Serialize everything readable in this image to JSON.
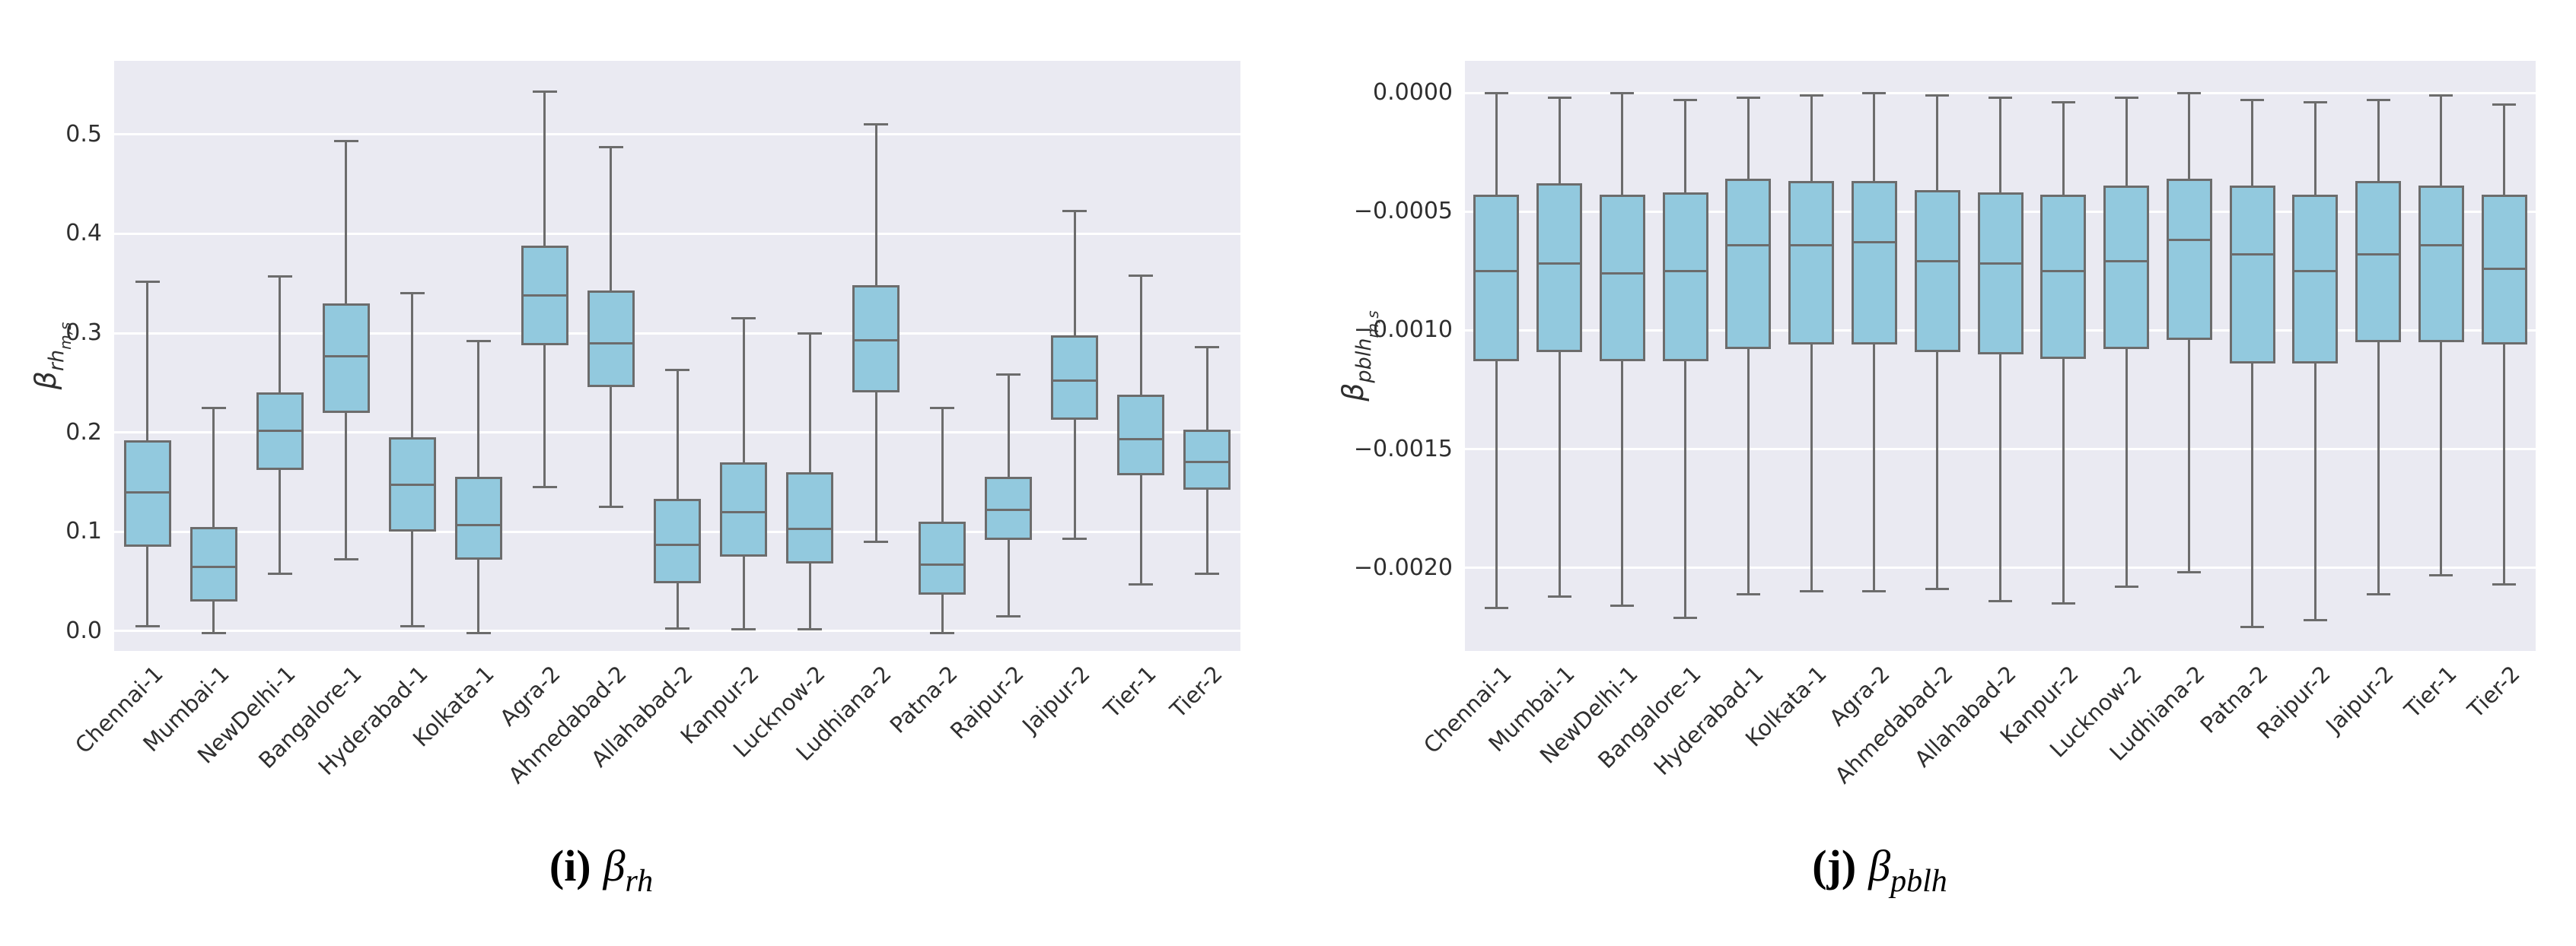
{
  "colors": {
    "page_bg": "#ffffff",
    "plot_bg": "#eaeaf2",
    "grid": "#ffffff",
    "box_fill": "#92c9de",
    "box_edge": "#6c6c6c",
    "tick_text": "#2f2f2f"
  },
  "chart_data": [
    {
      "type": "box",
      "title": "",
      "xlabel": "",
      "caption": {
        "index": "(i)",
        "symbol": "β",
        "subscript": "rh"
      },
      "ylabel": {
        "base": "β",
        "sub": "rh",
        "subsub": "m,s"
      },
      "ylim": [
        -0.0199,
        0.574
      ],
      "grid": true,
      "yticks": [
        {
          "value": 0.0,
          "label": "0.0"
        },
        {
          "value": 0.1,
          "label": "0.1"
        },
        {
          "value": 0.2,
          "label": "0.2"
        },
        {
          "value": 0.3,
          "label": "0.3"
        },
        {
          "value": 0.4,
          "label": "0.4"
        },
        {
          "value": 0.5,
          "label": "0.5"
        }
      ],
      "categories": [
        "Chennai-1",
        "Mumbai-1",
        "NewDelhi-1",
        "Bangalore-1",
        "Hyderabad-1",
        "Kolkata-1",
        "Agra-2",
        "Ahmedabad-2",
        "Allahabad-2",
        "Kanpur-2",
        "Lucknow-2",
        "Ludhiana-2",
        "Patna-2",
        "Raipur-2",
        "Jaipur-2",
        "Tier-1",
        "Tier-2"
      ],
      "boxes": [
        {
          "category": "Chennai-1",
          "whisker_low": 0.005,
          "q1": 0.085,
          "median": 0.14,
          "q3": 0.192,
          "whisker_high": 0.352
        },
        {
          "category": "Mumbai-1",
          "whisker_low": -0.002,
          "q1": 0.03,
          "median": 0.065,
          "q3": 0.105,
          "whisker_high": 0.225
        },
        {
          "category": "NewDelhi-1",
          "whisker_low": 0.058,
          "q1": 0.162,
          "median": 0.202,
          "q3": 0.24,
          "whisker_high": 0.357
        },
        {
          "category": "Bangalore-1",
          "whisker_low": 0.072,
          "q1": 0.22,
          "median": 0.277,
          "q3": 0.33,
          "whisker_high": 0.493
        },
        {
          "category": "Hyderabad-1",
          "whisker_low": 0.005,
          "q1": 0.1,
          "median": 0.147,
          "q3": 0.195,
          "whisker_high": 0.34
        },
        {
          "category": "Kolkata-1",
          "whisker_low": -0.002,
          "q1": 0.072,
          "median": 0.107,
          "q3": 0.155,
          "whisker_high": 0.292
        },
        {
          "category": "Agra-2",
          "whisker_low": 0.145,
          "q1": 0.288,
          "median": 0.338,
          "q3": 0.388,
          "whisker_high": 0.543
        },
        {
          "category": "Ahmedabad-2",
          "whisker_low": 0.125,
          "q1": 0.246,
          "median": 0.29,
          "q3": 0.343,
          "whisker_high": 0.487
        },
        {
          "category": "Allahabad-2",
          "whisker_low": 0.003,
          "q1": 0.048,
          "median": 0.087,
          "q3": 0.133,
          "whisker_high": 0.263
        },
        {
          "category": "Kanpur-2",
          "whisker_low": 0.002,
          "q1": 0.075,
          "median": 0.12,
          "q3": 0.17,
          "whisker_high": 0.315
        },
        {
          "category": "Lucknow-2",
          "whisker_low": 0.002,
          "q1": 0.068,
          "median": 0.103,
          "q3": 0.16,
          "whisker_high": 0.3
        },
        {
          "category": "Ludhiana-2",
          "whisker_low": 0.09,
          "q1": 0.24,
          "median": 0.293,
          "q3": 0.348,
          "whisker_high": 0.51
        },
        {
          "category": "Patna-2",
          "whisker_low": -0.002,
          "q1": 0.037,
          "median": 0.067,
          "q3": 0.11,
          "whisker_high": 0.225
        },
        {
          "category": "Raipur-2",
          "whisker_low": 0.015,
          "q1": 0.092,
          "median": 0.122,
          "q3": 0.155,
          "whisker_high": 0.258
        },
        {
          "category": "Jaipur-2",
          "whisker_low": 0.093,
          "q1": 0.213,
          "median": 0.252,
          "q3": 0.298,
          "whisker_high": 0.423
        },
        {
          "category": "Tier-1",
          "whisker_low": 0.047,
          "q1": 0.157,
          "median": 0.193,
          "q3": 0.238,
          "whisker_high": 0.358
        },
        {
          "category": "Tier-2",
          "whisker_low": 0.058,
          "q1": 0.142,
          "median": 0.17,
          "q3": 0.203,
          "whisker_high": 0.286
        }
      ]
    },
    {
      "type": "box",
      "title": "",
      "xlabel": "",
      "caption": {
        "index": "(j)",
        "symbol": "β",
        "subscript": "pblh"
      },
      "ylabel": {
        "base": "β",
        "sub": "pblh",
        "subsub": "m,s"
      },
      "ylim": [
        -0.00235,
        0.000135
      ],
      "grid": true,
      "yticks": [
        {
          "value": 0.0,
          "label": "0.0000"
        },
        {
          "value": -0.0005,
          "label": "−0.0005"
        },
        {
          "value": -0.001,
          "label": "−0.0010"
        },
        {
          "value": -0.0015,
          "label": "−0.0015"
        },
        {
          "value": -0.002,
          "label": "−0.0020"
        }
      ],
      "categories": [
        "Chennai-1",
        "Mumbai-1",
        "NewDelhi-1",
        "Bangalore-1",
        "Hyderabad-1",
        "Kolkata-1",
        "Agra-2",
        "Ahmedabad-2",
        "Allahabad-2",
        "Kanpur-2",
        "Lucknow-2",
        "Ludhiana-2",
        "Patna-2",
        "Raipur-2",
        "Jaipur-2",
        "Tier-1",
        "Tier-2"
      ],
      "boxes": [
        {
          "category": "Chennai-1",
          "whisker_low": -0.00217,
          "q1": -0.00113,
          "median": -0.00075,
          "q3": -0.00043,
          "whisker_high": 0.0
        },
        {
          "category": "Mumbai-1",
          "whisker_low": -0.00212,
          "q1": -0.00109,
          "median": -0.00072,
          "q3": -0.00038,
          "whisker_high": -2e-05
        },
        {
          "category": "NewDelhi-1",
          "whisker_low": -0.00216,
          "q1": -0.00113,
          "median": -0.00076,
          "q3": -0.00043,
          "whisker_high": 0.0
        },
        {
          "category": "Bangalore-1",
          "whisker_low": -0.00221,
          "q1": -0.00113,
          "median": -0.00075,
          "q3": -0.00042,
          "whisker_high": -3e-05
        },
        {
          "category": "Hyderabad-1",
          "whisker_low": -0.00211,
          "q1": -0.00108,
          "median": -0.00064,
          "q3": -0.00036,
          "whisker_high": -2e-05
        },
        {
          "category": "Kolkata-1",
          "whisker_low": -0.0021,
          "q1": -0.00106,
          "median": -0.00064,
          "q3": -0.00037,
          "whisker_high": -1e-05
        },
        {
          "category": "Agra-2",
          "whisker_low": -0.0021,
          "q1": -0.00106,
          "median": -0.00063,
          "q3": -0.00037,
          "whisker_high": 0.0
        },
        {
          "category": "Ahmedabad-2",
          "whisker_low": -0.00209,
          "q1": -0.00109,
          "median": -0.00071,
          "q3": -0.00041,
          "whisker_high": -1e-05
        },
        {
          "category": "Allahabad-2",
          "whisker_low": -0.00214,
          "q1": -0.0011,
          "median": -0.00072,
          "q3": -0.00042,
          "whisker_high": -2e-05
        },
        {
          "category": "Kanpur-2",
          "whisker_low": -0.00215,
          "q1": -0.00112,
          "median": -0.00075,
          "q3": -0.00043,
          "whisker_high": -4e-05
        },
        {
          "category": "Lucknow-2",
          "whisker_low": -0.00208,
          "q1": -0.00108,
          "median": -0.00071,
          "q3": -0.00039,
          "whisker_high": -2e-05
        },
        {
          "category": "Ludhiana-2",
          "whisker_low": -0.00202,
          "q1": -0.00104,
          "median": -0.00062,
          "q3": -0.00036,
          "whisker_high": 0.0
        },
        {
          "category": "Patna-2",
          "whisker_low": -0.00225,
          "q1": -0.00114,
          "median": -0.00068,
          "q3": -0.00039,
          "whisker_high": -3e-05
        },
        {
          "category": "Raipur-2",
          "whisker_low": -0.00222,
          "q1": -0.00114,
          "median": -0.00075,
          "q3": -0.00043,
          "whisker_high": -4e-05
        },
        {
          "category": "Jaipur-2",
          "whisker_low": -0.00211,
          "q1": -0.00105,
          "median": -0.00068,
          "q3": -0.00037,
          "whisker_high": -3e-05
        },
        {
          "category": "Tier-1",
          "whisker_low": -0.00203,
          "q1": -0.00105,
          "median": -0.00064,
          "q3": -0.00039,
          "whisker_high": -1e-05
        },
        {
          "category": "Tier-2",
          "whisker_low": -0.00207,
          "q1": -0.00106,
          "median": -0.00074,
          "q3": -0.00043,
          "whisker_high": -5e-05
        }
      ]
    }
  ]
}
